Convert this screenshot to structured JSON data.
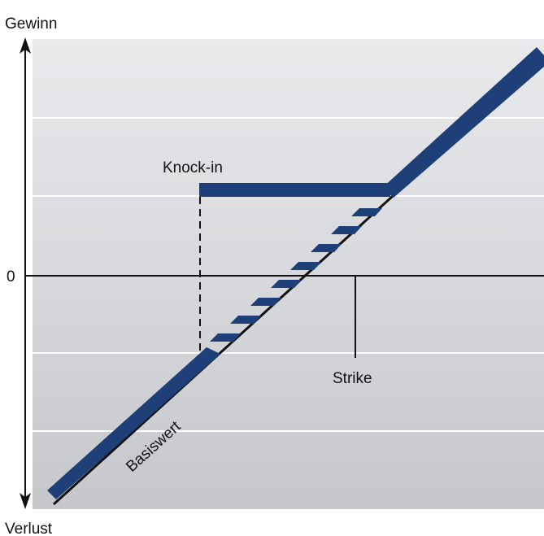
{
  "axes": {
    "y_top_label": "Gewinn",
    "y_bottom_label": "Verlust",
    "zero_label": "0"
  },
  "annotations": {
    "knock_in": "Knock-in",
    "strike": "Strike",
    "underlying": "Basiswert"
  },
  "colors": {
    "bar": "#1f3f78",
    "shadow": "#111111",
    "panel_top": "#e9eaec",
    "panel_bottom": "#c5c7cb",
    "band_line": "#ffffff",
    "axis": "#111111"
  }
}
